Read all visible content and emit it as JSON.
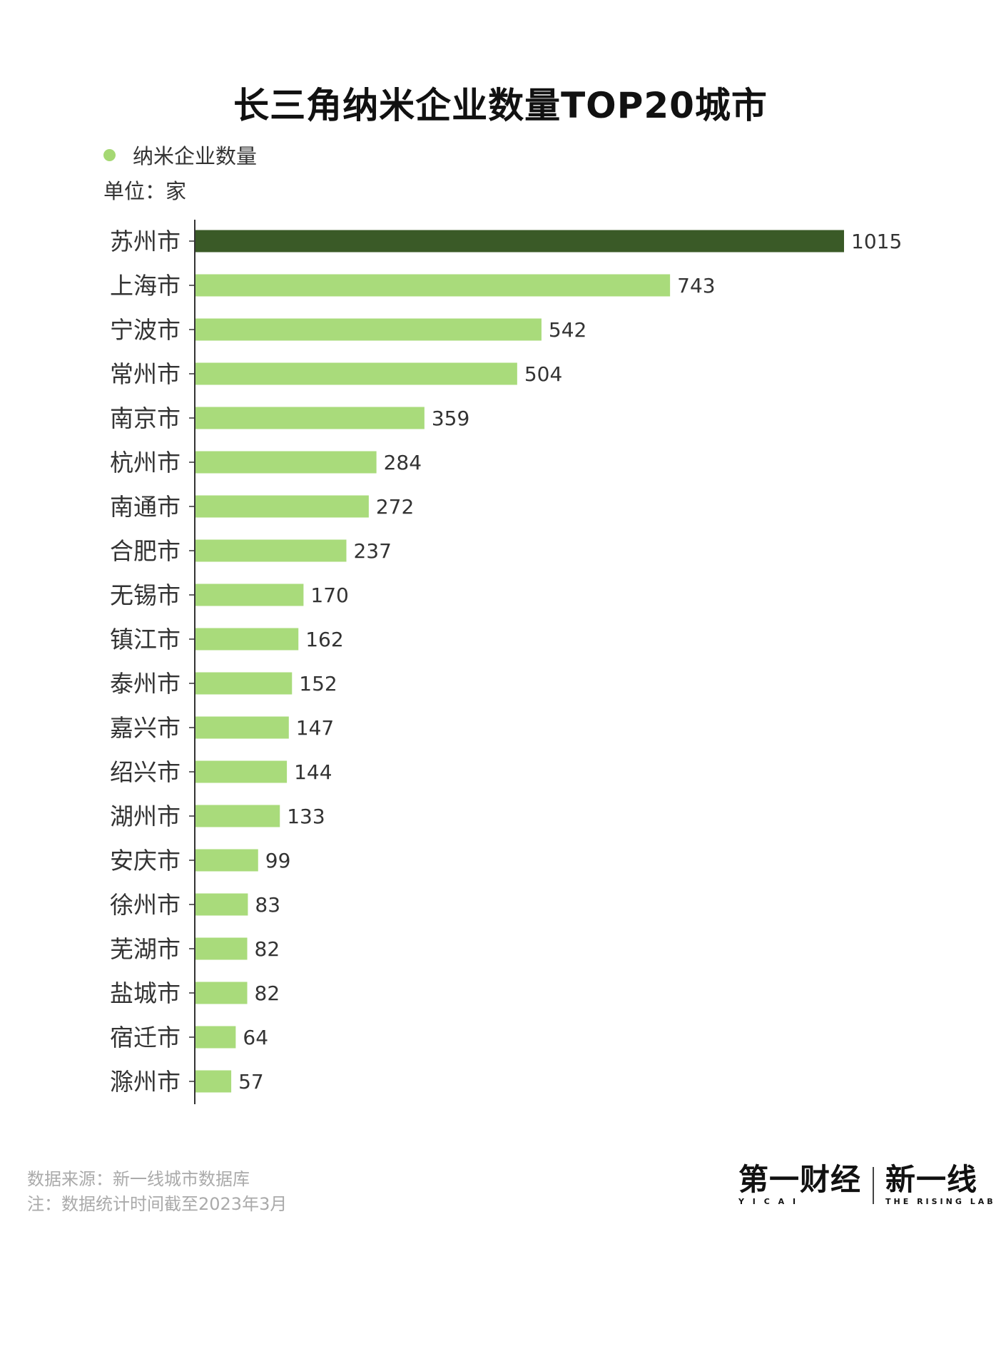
{
  "title": "长三角纳米企业数量TOP20城市",
  "legend": {
    "label": "纳米企业数量",
    "color": "#a5d873"
  },
  "unit": "单位：家",
  "colors": {
    "bar": "#a9db7b",
    "highlight": "#3a5a27",
    "axis": "#333333"
  },
  "chart_data": {
    "type": "bar",
    "orientation": "horizontal",
    "title": "长三角纳米企业数量TOP20城市",
    "categories": [
      "苏州市",
      "上海市",
      "宁波市",
      "常州市",
      "南京市",
      "杭州市",
      "南通市",
      "合肥市",
      "无锡市",
      "镇江市",
      "泰州市",
      "嘉兴市",
      "绍兴市",
      "湖州市",
      "安庆市",
      "徐州市",
      "芜湖市",
      "盐城市",
      "宿迁市",
      "滁州市"
    ],
    "series": [
      {
        "name": "纳米企业数量",
        "values": [
          1015,
          743,
          542,
          504,
          359,
          284,
          272,
          237,
          170,
          162,
          152,
          147,
          144,
          133,
          99,
          83,
          82,
          82,
          64,
          57
        ]
      }
    ],
    "highlight_index": 0,
    "xlim": [
      0,
      1015
    ],
    "grid": false,
    "legend_position": "top-left"
  },
  "footer": {
    "source": "数据来源：新一线城市数据库",
    "note": "注：数据统计时间截至2023年3月"
  },
  "logos": {
    "yicai": "第一财经",
    "yicai_sub": "Y I C A I",
    "rising": "新一线",
    "rising_sub": "THE RISING LAB"
  }
}
